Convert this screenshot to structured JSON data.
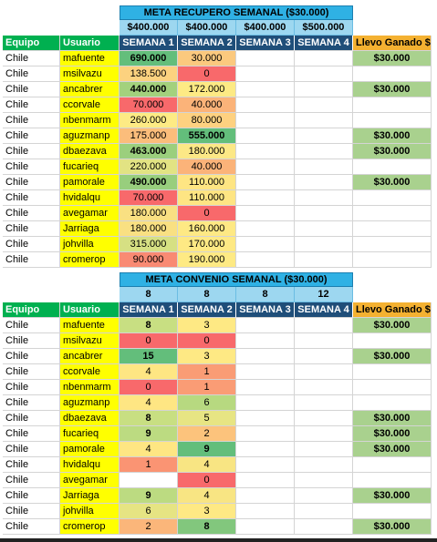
{
  "recupero": {
    "title": "META RECUPERO SEMANAL ($30.000)",
    "targets": [
      "$400.000",
      "$400.000",
      "$400.000",
      "$500.000"
    ],
    "headers": [
      "Equipo",
      "Usuario",
      "SEMANA 1",
      "SEMANA 2",
      "SEMANA 3",
      "SEMANA 4",
      "Llevo Ganado $"
    ],
    "rows": [
      {
        "equipo": "Chile",
        "usuario": "mafuente",
        "s1": "690.000",
        "s2": "30.000",
        "ganado": "$30.000"
      },
      {
        "equipo": "Chile",
        "usuario": "msilvazu",
        "s1": "138.500",
        "s2": "0",
        "ganado": ""
      },
      {
        "equipo": "Chile",
        "usuario": "ancabrer",
        "s1": "440.000",
        "s2": "172.000",
        "ganado": "$30.000"
      },
      {
        "equipo": "Chile",
        "usuario": "ccorvale",
        "s1": "70.000",
        "s2": "40.000",
        "ganado": ""
      },
      {
        "equipo": "Chile",
        "usuario": "nbenmarm",
        "s1": "260.000",
        "s2": "80.000",
        "ganado": ""
      },
      {
        "equipo": "Chile",
        "usuario": "aguzmanp",
        "s1": "175.000",
        "s2": "555.000",
        "ganado": "$30.000"
      },
      {
        "equipo": "Chile",
        "usuario": "dbaezava",
        "s1": "463.000",
        "s2": "180.000",
        "ganado": "$30.000"
      },
      {
        "equipo": "Chile",
        "usuario": "fucarieq",
        "s1": "220.000",
        "s2": "40.000",
        "ganado": ""
      },
      {
        "equipo": "Chile",
        "usuario": "pamorale",
        "s1": "490.000",
        "s2": "110.000",
        "ganado": "$30.000"
      },
      {
        "equipo": "Chile",
        "usuario": "hvidalqu",
        "s1": "70.000",
        "s2": "110.000",
        "ganado": ""
      },
      {
        "equipo": "Chile",
        "usuario": "avegamar",
        "s1": "180.000",
        "s2": "0",
        "ganado": ""
      },
      {
        "equipo": "Chile",
        "usuario": "Jarriaga",
        "s1": "180.000",
        "s2": "160.000",
        "ganado": ""
      },
      {
        "equipo": "Chile",
        "usuario": "johvilla",
        "s1": "315.000",
        "s2": "170.000",
        "ganado": ""
      },
      {
        "equipo": "Chile",
        "usuario": "cromerop",
        "s1": "90.000",
        "s2": "190.000",
        "ganado": ""
      }
    ],
    "colors": {
      "s1": [
        "#63be7b",
        "#fcd27f",
        "#a3d17d",
        "#f8696b",
        "#fdeb84",
        "#fbbd7b",
        "#9bcf7d",
        "#e2e383",
        "#98ce7d",
        "#f8696b",
        "#f9e082",
        "#f9e082",
        "#d6e083",
        "#f98a73"
      ],
      "s2": [
        "#fbc97e",
        "#f8696b",
        "#fdea84",
        "#fbb379",
        "#fed180",
        "#63be7b",
        "#fce886",
        "#fbb379",
        "#fee583",
        "#fee583",
        "#f8696b",
        "#fee984",
        "#fee984",
        "#feea84"
      ]
    },
    "bold_s1": [
      true,
      false,
      true,
      false,
      false,
      false,
      true,
      false,
      true,
      false,
      false,
      false,
      false,
      false
    ],
    "bold_s2": [
      false,
      false,
      false,
      false,
      false,
      true,
      false,
      false,
      false,
      false,
      false,
      false,
      false,
      false
    ]
  },
  "convenio": {
    "title": "META CONVENIO SEMANAL ($30.000)",
    "targets": [
      "8",
      "8",
      "8",
      "12"
    ],
    "headers": [
      "Equipo",
      "Usuario",
      "SEMANA 1",
      "SEMANA 2",
      "SEMANA 3",
      "SEMANA 4",
      "Llevo Ganado $"
    ],
    "rows": [
      {
        "equipo": "Chile",
        "usuario": "mafuente",
        "s1": "8",
        "s2": "3",
        "ganado": "$30.000"
      },
      {
        "equipo": "Chile",
        "usuario": "msilvazu",
        "s1": "0",
        "s2": "0",
        "ganado": ""
      },
      {
        "equipo": "Chile",
        "usuario": "ancabrer",
        "s1": "15",
        "s2": "3",
        "ganado": "$30.000"
      },
      {
        "equipo": "Chile",
        "usuario": "ccorvale",
        "s1": "4",
        "s2": "1",
        "ganado": ""
      },
      {
        "equipo": "Chile",
        "usuario": "nbenmarm",
        "s1": "0",
        "s2": "1",
        "ganado": ""
      },
      {
        "equipo": "Chile",
        "usuario": "aguzmanp",
        "s1": "4",
        "s2": "6",
        "ganado": ""
      },
      {
        "equipo": "Chile",
        "usuario": "dbaezava",
        "s1": "8",
        "s2": "5",
        "ganado": "$30.000"
      },
      {
        "equipo": "Chile",
        "usuario": "fucarieq",
        "s1": "9",
        "s2": "2",
        "ganado": "$30.000"
      },
      {
        "equipo": "Chile",
        "usuario": "pamorale",
        "s1": "4",
        "s2": "9",
        "ganado": "$30.000"
      },
      {
        "equipo": "Chile",
        "usuario": "hvidalqu",
        "s1": "1",
        "s2": "4",
        "ganado": ""
      },
      {
        "equipo": "Chile",
        "usuario": "avegamar",
        "s1": "",
        "s2": "0",
        "ganado": ""
      },
      {
        "equipo": "Chile",
        "usuario": "Jarriaga",
        "s1": "9",
        "s2": "4",
        "ganado": "$30.000"
      },
      {
        "equipo": "Chile",
        "usuario": "johvilla",
        "s1": "6",
        "s2": "3",
        "ganado": ""
      },
      {
        "equipo": "Chile",
        "usuario": "cromerop",
        "s1": "2",
        "s2": "8",
        "ganado": "$30.000"
      }
    ],
    "colors": {
      "s1": [
        "#c8df82",
        "#f8696b",
        "#63be7b",
        "#fee683",
        "#f8696b",
        "#fee683",
        "#c8df82",
        "#bcdb81",
        "#fee683",
        "#fa9473",
        "#ffffff",
        "#bcdb81",
        "#e6e483",
        "#fbb67a"
      ],
      "s2": [
        "#fee984",
        "#f8696b",
        "#fee984",
        "#fa9c75",
        "#fa9c75",
        "#b7d980",
        "#e7e583",
        "#fcc37c",
        "#63be7b",
        "#f8e583",
        "#f8696b",
        "#f8e583",
        "#fee984",
        "#82c77d"
      ]
    },
    "bold_s1": [
      true,
      false,
      true,
      false,
      false,
      false,
      true,
      true,
      false,
      false,
      false,
      true,
      false,
      false
    ],
    "bold_s2": [
      false,
      false,
      false,
      false,
      false,
      false,
      false,
      false,
      true,
      false,
      false,
      false,
      false,
      true
    ]
  }
}
